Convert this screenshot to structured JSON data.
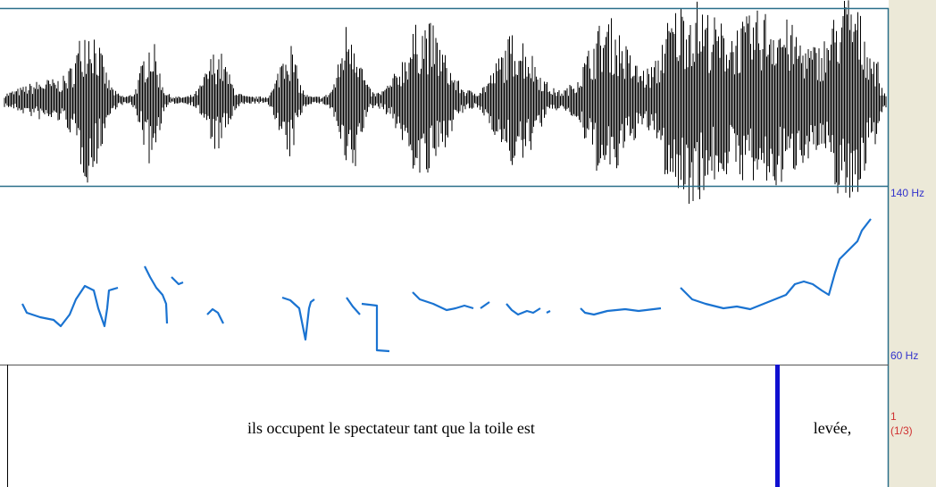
{
  "pitch_axis": {
    "top_label": "140 Hz",
    "bottom_label": "60 Hz"
  },
  "tier": {
    "number": "1",
    "position": "(1/3)",
    "intervals": [
      {
        "text": "ils occupent le spectateur tant que la toile est"
      },
      {
        "text": "levée,"
      }
    ]
  }
}
